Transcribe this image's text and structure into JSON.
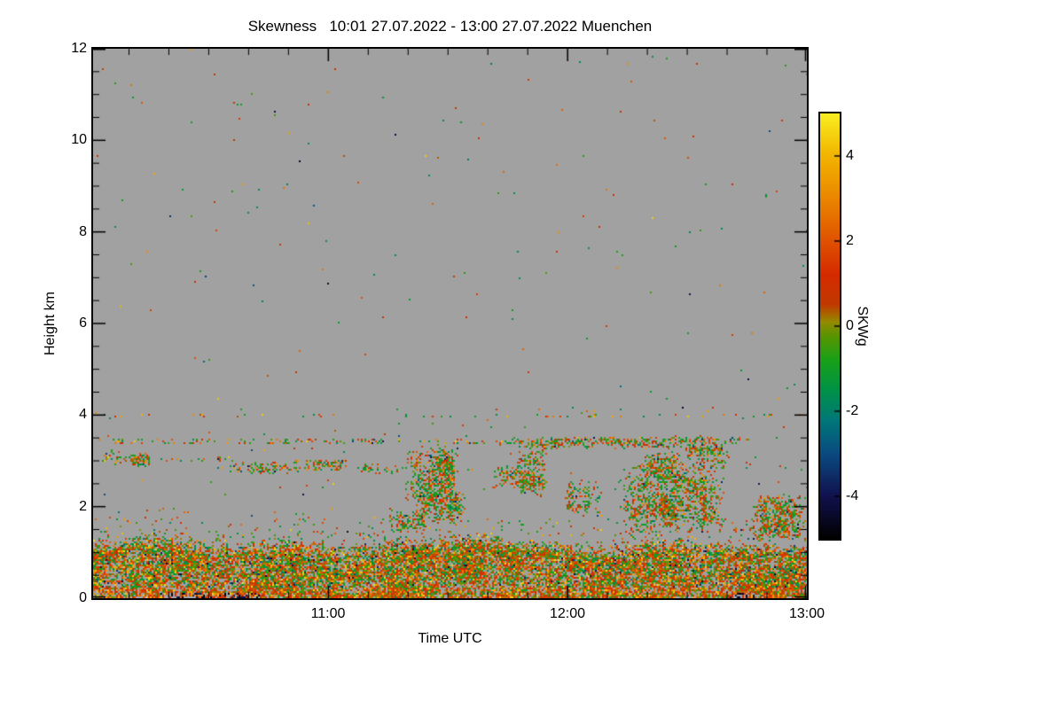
{
  "chart_data": {
    "type": "heatmap",
    "title": "Skewness   10:01 27.07.2022 - 13:00 27.07.2022 Muenchen",
    "xlabel": "Time UTC",
    "ylabel": "Height km",
    "colorbar_label": "SKWg",
    "x_axis": {
      "start_label": "10:01",
      "end_label": "13:00",
      "range_minutes": [
        0,
        179
      ],
      "tick_labels": [
        "11:00",
        "12:00",
        "13:00"
      ],
      "tick_minutes": [
        59,
        119,
        179
      ],
      "minor_tick_start_minute": 9,
      "minor_tick_step_minutes": 10
    },
    "y_axis": {
      "range_km": [
        0,
        12
      ],
      "tick_labels": [
        "0",
        "2",
        "4",
        "6",
        "8",
        "10",
        "12"
      ],
      "tick_values": [
        0,
        2,
        4,
        6,
        8,
        10,
        12
      ],
      "minor_tick_step_km": 0.5
    },
    "colorbar": {
      "range": [
        -5,
        5
      ],
      "tick_labels": [
        "4",
        "2",
        "0",
        "-2",
        "-4"
      ],
      "tick_values": [
        4,
        2,
        0,
        -2,
        -4
      ],
      "stops": [
        [
          -5,
          "#000000"
        ],
        [
          -4,
          "#11114e"
        ],
        [
          -3,
          "#0a4a80"
        ],
        [
          -2.2,
          "#007878"
        ],
        [
          -1.5,
          "#009246"
        ],
        [
          -0.8,
          "#18a018"
        ],
        [
          -0.2,
          "#5d9400"
        ],
        [
          0.1,
          "#948a00"
        ],
        [
          0.5,
          "#c03a00"
        ],
        [
          1.2,
          "#d42a00"
        ],
        [
          2,
          "#e05200"
        ],
        [
          3,
          "#ea8600"
        ],
        [
          4,
          "#f2b400"
        ],
        [
          5,
          "#f8ee20"
        ]
      ]
    },
    "background_color": "#a1a1a1",
    "seed": 20220727,
    "field": {
      "boundary_layer": {
        "top_base_km": 1.15,
        "top_var_km": 0.4,
        "top_noise_scale_min": 16,
        "density": 0.93,
        "fringe_km": 0.55,
        "fringe_density": 0.1
      },
      "ground_dark_patches": [
        [
          17,
          32
        ],
        [
          33,
          42
        ],
        [
          159,
          166
        ]
      ],
      "cloud_patches": [
        [
          2,
          8,
          2.9,
          3.25,
          0.45
        ],
        [
          8,
          15,
          2.85,
          3.2,
          0.5
        ],
        [
          33,
          50,
          2.7,
          3.0,
          0.55
        ],
        [
          50,
          64,
          2.75,
          3.05,
          0.5
        ],
        [
          66,
          77,
          2.7,
          2.95,
          0.45
        ],
        [
          74,
          84,
          1.4,
          1.95,
          0.6
        ],
        [
          80,
          94,
          1.6,
          2.35,
          0.65
        ],
        [
          78,
          92,
          2.0,
          3.4,
          0.5
        ],
        [
          84,
          91,
          2.2,
          3.35,
          0.7
        ],
        [
          100,
          110,
          2.35,
          2.9,
          0.55
        ],
        [
          106,
          114,
          2.2,
          3.35,
          0.6
        ],
        [
          100,
          163,
          3.25,
          3.55,
          0.55
        ],
        [
          118,
          128,
          1.75,
          2.6,
          0.55
        ],
        [
          131,
          159,
          1.3,
          3.0,
          0.68
        ],
        [
          138,
          148,
          2.6,
          3.2,
          0.55
        ],
        [
          148,
          160,
          2.8,
          3.45,
          0.6
        ],
        [
          165,
          179,
          1.2,
          2.3,
          0.7
        ]
      ],
      "speckle_lines": [
        [
          2,
          165,
          3.42,
          0.12,
          0.15
        ],
        [
          2,
          35,
          3.05,
          0.1,
          0.2
        ],
        [
          30,
          100,
          2.82,
          0.08,
          0.12
        ],
        [
          0,
          179,
          4.0,
          0.09,
          0.05
        ]
      ],
      "sparse_density_upper": 0.0018,
      "sparse_density_lower": 0.005,
      "sparse_boundary_km": 4.15
    }
  }
}
